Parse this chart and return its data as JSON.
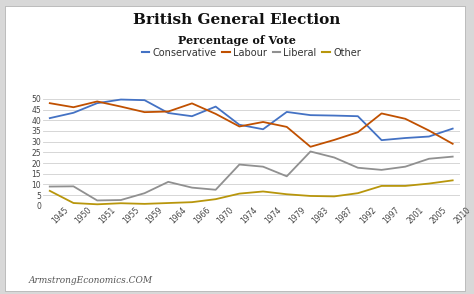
{
  "title": "British General Election",
  "subtitle": "Percentage of Vote",
  "watermark": "ArmstrongEconomics.COM",
  "year_labels": [
    "1945",
    "1950",
    "1951",
    "1955",
    "1959",
    "1964",
    "1966",
    "1970",
    "1974",
    "1974",
    "1979",
    "1983",
    "1987",
    "1992",
    "1997",
    "2001",
    "2005",
    "2010"
  ],
  "conservative": [
    41,
    43.5,
    48,
    49.7,
    49.4,
    43.4,
    41.9,
    46.4,
    37.9,
    35.8,
    43.9,
    42.4,
    42.2,
    41.9,
    30.7,
    31.7,
    32.4,
    36.1
  ],
  "labour": [
    48,
    46.1,
    48.8,
    46.4,
    43.8,
    44.1,
    47.9,
    43.0,
    37.1,
    39.2,
    36.9,
    27.6,
    30.8,
    34.4,
    43.2,
    40.7,
    35.2,
    29.0
  ],
  "liberal": [
    9.0,
    9.1,
    2.5,
    2.7,
    5.9,
    11.2,
    8.5,
    7.5,
    19.3,
    18.3,
    13.8,
    25.4,
    22.6,
    17.8,
    16.8,
    18.3,
    22.0,
    23.0
  ],
  "other": [
    7.0,
    1.3,
    0.7,
    1.2,
    0.9,
    1.3,
    1.7,
    3.1,
    5.7,
    6.7,
    5.4,
    4.6,
    4.4,
    5.9,
    9.3,
    9.3,
    10.4,
    11.9
  ],
  "colors": {
    "conservative": "#4472C4",
    "labour": "#C05000",
    "liberal": "#909090",
    "other": "#B8960C"
  },
  "ylim": [
    0,
    55
  ],
  "yticks": [
    0,
    5,
    10,
    15,
    20,
    25,
    30,
    35,
    40,
    45,
    50
  ],
  "background_color": "#ffffff",
  "plot_bg_color": "#ffffff",
  "grid_color": "#d0d0d0",
  "title_fontsize": 11,
  "subtitle_fontsize": 8,
  "legend_fontsize": 7,
  "watermark_fontsize": 6.5,
  "tick_fontsize": 5.5,
  "linewidth": 1.3
}
